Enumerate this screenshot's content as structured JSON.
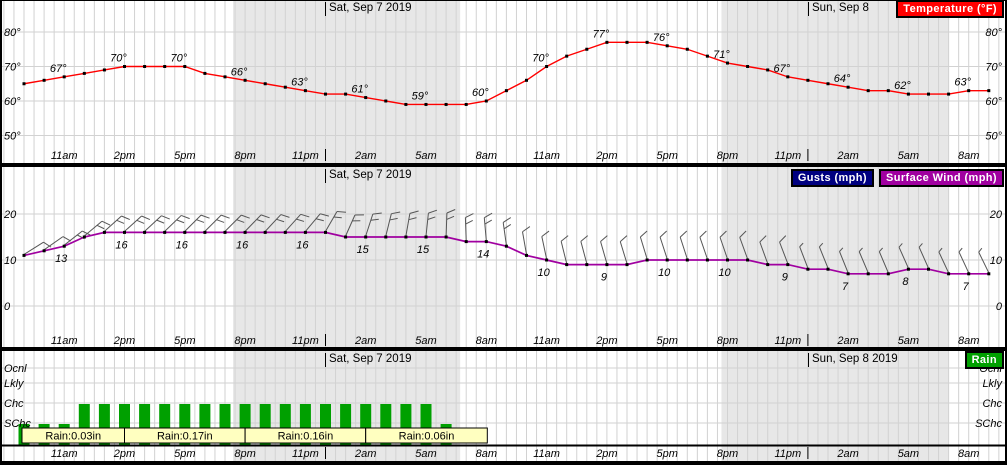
{
  "x_axis": {
    "tick_labels": [
      "11am",
      "2pm",
      "5pm",
      "8pm",
      "11pm",
      "2am",
      "5am",
      "8am",
      "11am",
      "2pm",
      "5pm",
      "8pm",
      "11pm",
      "2am",
      "5am",
      "8am"
    ],
    "days": {
      "sat": "Sat, Sep 7 2019",
      "sun_short": "Sun, Sep 8",
      "sun_full": "Sun, Sep 8 2019"
    }
  },
  "badges": {
    "temperature": {
      "label": "Temperature (°F)",
      "bg": "#FF0000"
    },
    "gusts": {
      "label": "Gusts (mph)",
      "bg": "#000080"
    },
    "surface_wind": {
      "label": "Surface Wind (mph)",
      "bg": "#A000A0"
    },
    "rain": {
      "label": "Rain",
      "bg": "#00A000"
    }
  },
  "colors": {
    "temperature_line": "#FF0000",
    "wind_line": "#A000A0",
    "rain_bar": "#00A000",
    "rain_box_bg": "#FFFFC0",
    "rain_box_text": "#009900",
    "night": "#E7E7E7",
    "grid": "#D2D2D2",
    "barb": "#555555"
  },
  "night_shading": [
    {
      "from_hour": 10.4,
      "to_hour": 21.7
    },
    {
      "from_hour": 34.7,
      "to_hour": 46.0
    }
  ],
  "chart_data": [
    {
      "type": "line",
      "name": "temperature",
      "panel_title": "Temperature (°F)",
      "unit": "°F",
      "color": "#FF0000",
      "day_headers": [
        "Sat, Sep 7 2019",
        "Sun, Sep 8"
      ],
      "y_ticks": [
        {
          "value": 50,
          "label": "50°"
        },
        {
          "value": 60,
          "label": "60°"
        },
        {
          "value": 70,
          "label": "70°"
        },
        {
          "value": 80,
          "label": "80°"
        }
      ],
      "labeled": {
        "times": [
          "11am",
          "2pm",
          "5pm",
          "8pm",
          "11pm",
          "2am",
          "5am",
          "8am",
          "11am",
          "2pm",
          "5pm",
          "8pm",
          "11pm",
          "2am",
          "5am",
          "8am"
        ],
        "hour_indices": [
          2,
          5,
          8,
          11,
          14,
          17,
          20,
          23,
          26,
          29,
          32,
          35,
          38,
          41,
          44,
          47
        ],
        "values": [
          67,
          70,
          70,
          66,
          63,
          61,
          59,
          60,
          70,
          77,
          76,
          71,
          67,
          64,
          62,
          63
        ],
        "labels": [
          "67°",
          "70°",
          "70°",
          "66°",
          "63°",
          "61°",
          "59°",
          "60°",
          "70°",
          "77°",
          "76°",
          "71°",
          "67°",
          "64°",
          "62°",
          "63°"
        ]
      },
      "hourly_values": [
        65,
        66,
        67,
        68,
        69,
        70,
        70,
        70,
        70,
        68,
        67,
        66,
        65,
        64,
        63,
        62,
        62,
        61,
        60,
        59,
        59,
        59,
        59,
        60,
        63,
        66,
        70,
        73,
        75,
        77,
        77,
        77,
        76,
        75,
        73,
        71,
        70,
        69,
        67,
        66,
        65,
        64,
        63,
        63,
        62,
        62,
        62,
        63,
        63
      ]
    },
    {
      "type": "line",
      "name": "surface-wind",
      "panel_title": "Surface Wind (mph)",
      "unit": "mph",
      "color": "#A000A0",
      "legend": [
        "Gusts (mph)",
        "Surface Wind (mph)"
      ],
      "day_headers": [
        "Sat, Sep 7 2019"
      ],
      "y_ticks": [
        {
          "value": 0,
          "label": "0"
        },
        {
          "value": 10,
          "label": "10"
        },
        {
          "value": 20,
          "label": "20"
        }
      ],
      "labeled": {
        "times": [
          "11am",
          "2pm",
          "5pm",
          "8pm",
          "11pm",
          "2am",
          "5am",
          "8am",
          "11am",
          "2pm",
          "5pm",
          "8pm",
          "11pm",
          "2am",
          "5am",
          "8am"
        ],
        "hour_indices": [
          2,
          5,
          8,
          11,
          14,
          17,
          20,
          23,
          26,
          29,
          32,
          35,
          38,
          41,
          44,
          47
        ],
        "values": [
          13,
          16,
          16,
          16,
          16,
          15,
          15,
          14,
          10,
          9,
          10,
          10,
          9,
          7,
          8,
          7
        ],
        "labels": [
          "13",
          "16",
          "16",
          "16",
          "16",
          "15",
          "15",
          "14",
          "10",
          "9",
          "10",
          "10",
          "9",
          "7",
          "8",
          "7"
        ]
      },
      "hourly_values": [
        11,
        12,
        13,
        15,
        16,
        16,
        16,
        16,
        16,
        16,
        16,
        16,
        16,
        16,
        16,
        16,
        15,
        15,
        15,
        15,
        15,
        15,
        14,
        14,
        13,
        11,
        10,
        9,
        9,
        9,
        9,
        10,
        10,
        10,
        10,
        10,
        10,
        9,
        9,
        8,
        8,
        7,
        7,
        7,
        8,
        8,
        7,
        7,
        7
      ],
      "barb_angles_deg": [
        58,
        55,
        52,
        50,
        48,
        48,
        47,
        46,
        45,
        45,
        45,
        44,
        43,
        42,
        40,
        30,
        24,
        18,
        14,
        10,
        6,
        2,
        -2,
        -5,
        -8,
        -10,
        -12,
        -14,
        -15,
        -16,
        -17,
        -17,
        -18,
        -18,
        -19,
        -19,
        -20,
        -20,
        -21,
        -21,
        -22,
        -22,
        -23,
        -23,
        -24,
        -24,
        -25,
        -25,
        -26
      ]
    },
    {
      "type": "bar",
      "name": "rain",
      "panel_title": "Rain",
      "color": "#00A000",
      "day_headers": [
        "Sat, Sep 7 2019",
        "Sun, Sep 8 2019"
      ],
      "categories_top_to_bottom": [
        "Ocnl",
        "Lkly",
        "Chc",
        "SChc"
      ],
      "bars": {
        "start_hour_index": 0,
        "levels": [
          "SChc",
          "SChc",
          "SChc",
          "Chc",
          "Chc",
          "Chc",
          "Chc",
          "Chc",
          "Chc",
          "Chc",
          "Chc",
          "Chc",
          "Chc",
          "Chc",
          "Chc",
          "Chc",
          "Chc",
          "Chc",
          "Chc",
          "Chc",
          "Chc",
          "SChc"
        ]
      },
      "amount_boxes": [
        {
          "label": "Rain:0.03in",
          "from_hour": -0.1,
          "to_hour": 5
        },
        {
          "label": "Rain:0.17in",
          "from_hour": 5,
          "to_hour": 11
        },
        {
          "label": "Rain:0.16in",
          "from_hour": 11,
          "to_hour": 17
        },
        {
          "label": "Rain:0.06in",
          "from_hour": 17,
          "to_hour": 23.05
        }
      ]
    }
  ]
}
